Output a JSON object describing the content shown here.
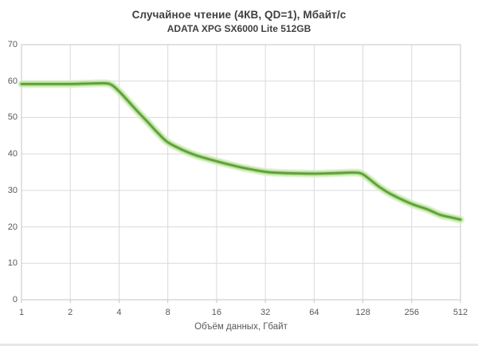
{
  "chart_data": {
    "type": "line",
    "title": "Случайное чтение (4КВ, QD=1), Мбайт/с",
    "subtitle": "ADATA XPG SX6000 Lite 512GB",
    "xlabel": "Объём данных, Гбайт",
    "ylabel": "",
    "x_scale": "log2",
    "xlim": [
      1,
      512
    ],
    "ylim": [
      0,
      70
    ],
    "x_ticks": [
      1,
      2,
      4,
      8,
      16,
      32,
      64,
      128,
      256,
      512
    ],
    "y_ticks": [
      0,
      10,
      20,
      30,
      40,
      50,
      60,
      70
    ],
    "grid": true,
    "legend": "none",
    "series": [
      {
        "name": "ADATA XPG SX6000 Lite 512GB",
        "x": [
          1,
          1.5,
          2,
          2.5,
          3,
          3.5,
          4,
          5,
          6,
          7,
          8,
          10,
          12,
          14,
          16,
          20,
          24,
          32,
          40,
          48,
          64,
          80,
          96,
          112,
          128,
          160,
          192,
          256,
          320,
          384,
          448,
          512
        ],
        "y": [
          59.2,
          59.2,
          59.2,
          59.3,
          59.4,
          59.2,
          57.2,
          52.5,
          48.8,
          45.6,
          43.2,
          41.0,
          39.6,
          38.7,
          38.0,
          36.9,
          36.1,
          35.1,
          34.8,
          34.7,
          34.6,
          34.7,
          34.8,
          34.9,
          34.4,
          31.1,
          28.9,
          26.3,
          24.8,
          23.3,
          22.6,
          22.0
        ]
      }
    ]
  },
  "colors": {
    "line_core": "#5f9e3b",
    "line_glow_mid": "#a9da85",
    "line_glow_outer": "#d7efc3",
    "gridline": "#d9d9d9",
    "axis_border": "#c6c6c6",
    "title_text": "#3f3f3f",
    "tick_text": "#595959",
    "bottom_strip": "#e7e7e7",
    "background": "#ffffff"
  }
}
